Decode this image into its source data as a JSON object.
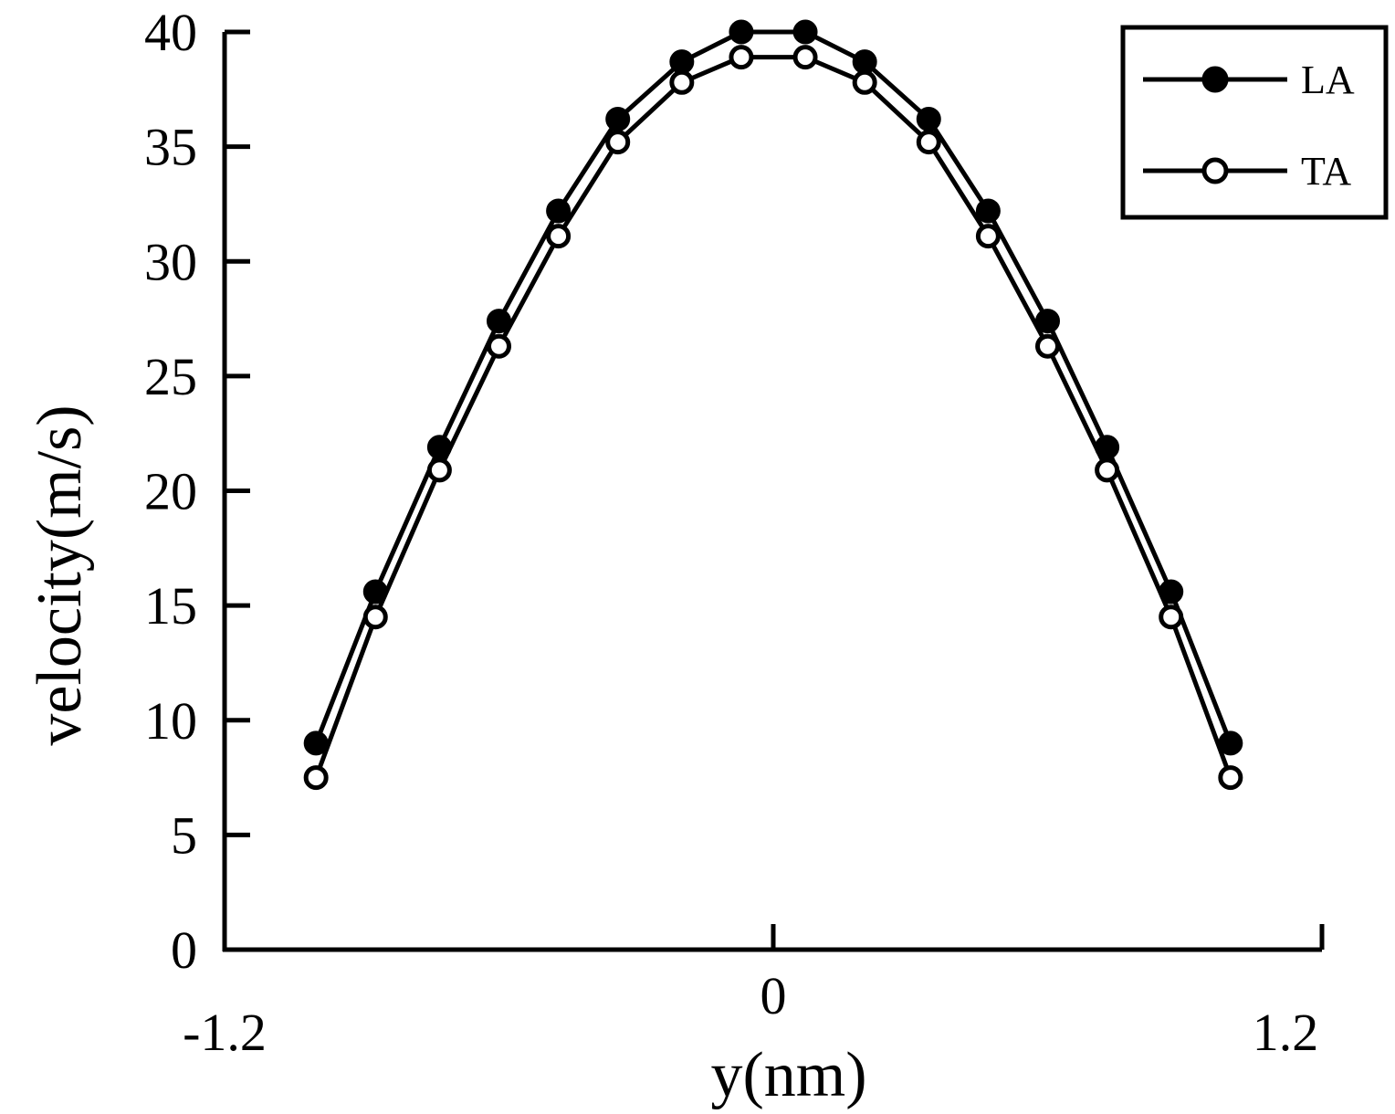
{
  "chart_data": {
    "type": "line",
    "xlabel": "y(nm)",
    "ylabel": "velocity(m/s)",
    "xlim": [
      -1.2,
      1.2
    ],
    "ylim": [
      0,
      40
    ],
    "xticks": [
      "-1.2",
      "0",
      "1.2"
    ],
    "yticks": [
      "0",
      "5",
      "10",
      "15",
      "20",
      "25",
      "30",
      "35",
      "40"
    ],
    "legend_position": "top-right",
    "grid": false,
    "series": [
      {
        "name": "LA",
        "marker": "filled-circle",
        "x": [
          -1.0,
          -0.87,
          -0.73,
          -0.6,
          -0.47,
          -0.34,
          -0.2,
          -0.07,
          0.07,
          0.2,
          0.34,
          0.47,
          0.6,
          0.73,
          0.87,
          1.0
        ],
        "y": [
          9.0,
          15.6,
          21.9,
          27.4,
          32.2,
          36.2,
          38.7,
          40.0,
          40.0,
          38.7,
          36.2,
          32.2,
          27.4,
          21.9,
          15.6,
          9.0
        ]
      },
      {
        "name": "TA",
        "marker": "open-circle",
        "x": [
          -1.0,
          -0.87,
          -0.73,
          -0.6,
          -0.47,
          -0.34,
          -0.2,
          -0.07,
          0.07,
          0.2,
          0.34,
          0.47,
          0.6,
          0.73,
          0.87,
          1.0
        ],
        "y": [
          7.5,
          14.5,
          20.9,
          26.3,
          31.1,
          35.2,
          37.8,
          38.9,
          38.9,
          37.8,
          35.2,
          31.1,
          26.3,
          20.9,
          14.5,
          7.5
        ]
      }
    ]
  }
}
